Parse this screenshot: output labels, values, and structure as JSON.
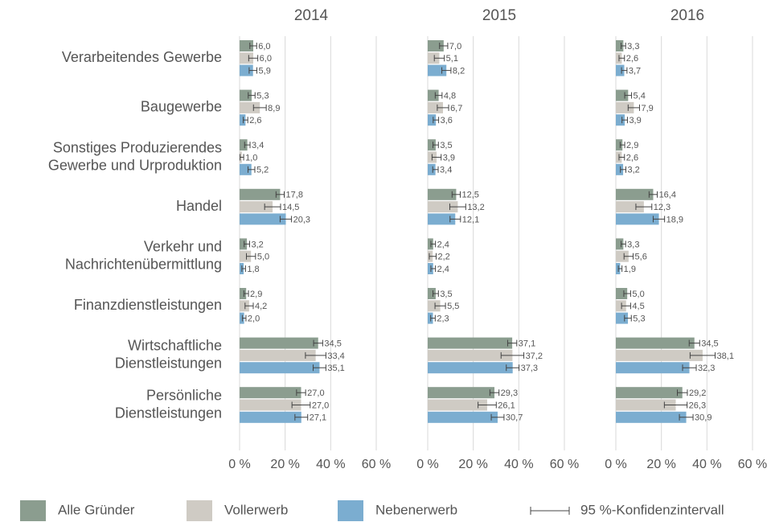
{
  "chart_data": {
    "type": "bar",
    "orientation": "horizontal",
    "categories": [
      [
        "Verarbeitendes Gewerbe"
      ],
      [
        "Baugewerbe"
      ],
      [
        "Sonstiges Produzierendes",
        "Gewerbe und Urproduktion"
      ],
      [
        "Handel"
      ],
      [
        "Verkehr und",
        "Nachrichtenübermittlung"
      ],
      [
        "Finanzdienstleistungen"
      ],
      [
        "Wirtschaftliche",
        "Dienstleistungen"
      ],
      [
        "Persönliche",
        "Dienstleistungen"
      ]
    ],
    "series": [
      {
        "name": "Alle Gründer",
        "color": "#8b9d8f"
      },
      {
        "name": "Vollerwerb",
        "color": "#cfcbc4"
      },
      {
        "name": "Nebenerwerb",
        "color": "#7badd0"
      }
    ],
    "error_legend": "95 %-Konfidenzintervall",
    "xlim": [
      0,
      60
    ],
    "xticks": [
      {
        "value": 0,
        "label": "0 %"
      },
      {
        "value": 20,
        "label": "20 %"
      },
      {
        "value": 40,
        "label": "40 %"
      },
      {
        "value": 60,
        "label": "60 %"
      }
    ],
    "grid": true,
    "panels": [
      {
        "title": "2014",
        "series": [
          {
            "values": [
              6.0,
              5.3,
              3.4,
              17.8,
              3.2,
              2.9,
              34.5,
              27.0
            ],
            "value_labels": [
              "6,0",
              "5,3",
              "3,4",
              "17,8",
              "3,2",
              "2,9",
              "34,5",
              "27,0"
            ],
            "errors": [
              1.5,
              1.5,
              1.2,
              1.8,
              1.2,
              1.0,
              2.0,
              2.0
            ]
          },
          {
            "values": [
              6.0,
              8.9,
              1.0,
              14.5,
              5.0,
              4.2,
              33.4,
              27.0
            ],
            "value_labels": [
              "6,0",
              "8,9",
              "1,0",
              "14,5",
              "5,0",
              "4,2",
              "33,4",
              "27,0"
            ],
            "errors": [
              2.0,
              2.8,
              0.8,
              3.5,
              2.0,
              1.8,
              4.5,
              4.0
            ]
          },
          {
            "values": [
              5.9,
              2.6,
              5.2,
              20.3,
              1.8,
              2.0,
              35.1,
              27.1
            ],
            "value_labels": [
              "5,9",
              "2,6",
              "5,2",
              "20,3",
              "1,8",
              "2,0",
              "35,1",
              "27,1"
            ],
            "errors": [
              1.7,
              1.0,
              1.5,
              2.5,
              0.8,
              0.8,
              2.8,
              2.8
            ]
          }
        ]
      },
      {
        "title": "2015",
        "series": [
          {
            "values": [
              7.0,
              4.8,
              3.5,
              12.5,
              2.4,
              3.5,
              37.1,
              29.3
            ],
            "value_labels": [
              "7,0",
              "4,8",
              "3,5",
              "12,5",
              "2,4",
              "3,5",
              "37,1",
              "29,3"
            ],
            "errors": [
              1.8,
              1.5,
              1.2,
              1.8,
              1.0,
              1.2,
              2.0,
              2.0
            ]
          },
          {
            "values": [
              5.1,
              6.7,
              3.9,
              13.2,
              2.2,
              5.5,
              37.2,
              26.1
            ],
            "value_labels": [
              "5,1",
              "6,7",
              "3,9",
              "13,2",
              "2,2",
              "5,5",
              "37,2",
              "26,1"
            ],
            "errors": [
              2.2,
              2.5,
              2.0,
              3.5,
              1.5,
              2.3,
              5.0,
              4.0
            ]
          },
          {
            "values": [
              8.2,
              3.6,
              3.4,
              12.1,
              2.4,
              2.3,
              37.3,
              30.7
            ],
            "value_labels": [
              "8,2",
              "3,6",
              "3,4",
              "12,1",
              "2,4",
              "2,3",
              "37,3",
              "30,7"
            ],
            "errors": [
              2.0,
              1.2,
              1.2,
              2.3,
              1.0,
              1.0,
              2.8,
              2.8
            ]
          }
        ]
      },
      {
        "title": "2016",
        "series": [
          {
            "values": [
              3.3,
              5.4,
              2.9,
              16.4,
              3.3,
              5.0,
              34.5,
              29.2
            ],
            "value_labels": [
              "3,3",
              "5,4",
              "2,9",
              "16,4",
              "3,3",
              "5,0",
              "34,5",
              "29,2"
            ],
            "errors": [
              1.0,
              1.5,
              1.0,
              1.8,
              1.0,
              1.5,
              2.3,
              2.2
            ]
          },
          {
            "values": [
              2.6,
              7.9,
              2.6,
              12.3,
              5.6,
              4.5,
              38.1,
              26.3
            ],
            "value_labels": [
              "2,6",
              "7,9",
              "2,6",
              "12,3",
              "5,6",
              "4,5",
              "38,1",
              "26,3"
            ],
            "errors": [
              1.2,
              2.5,
              1.2,
              3.5,
              2.0,
              2.0,
              5.5,
              5.0
            ]
          },
          {
            "values": [
              3.7,
              3.9,
              3.2,
              18.9,
              1.9,
              5.3,
              32.3,
              30.9
            ],
            "value_labels": [
              "3,7",
              "3,9",
              "3,2",
              "18,9",
              "1,9",
              "5,3",
              "32,3",
              "30,9"
            ],
            "errors": [
              1.2,
              1.2,
              1.2,
              2.5,
              0.8,
              1.5,
              3.0,
              3.0
            ]
          }
        ]
      }
    ]
  }
}
